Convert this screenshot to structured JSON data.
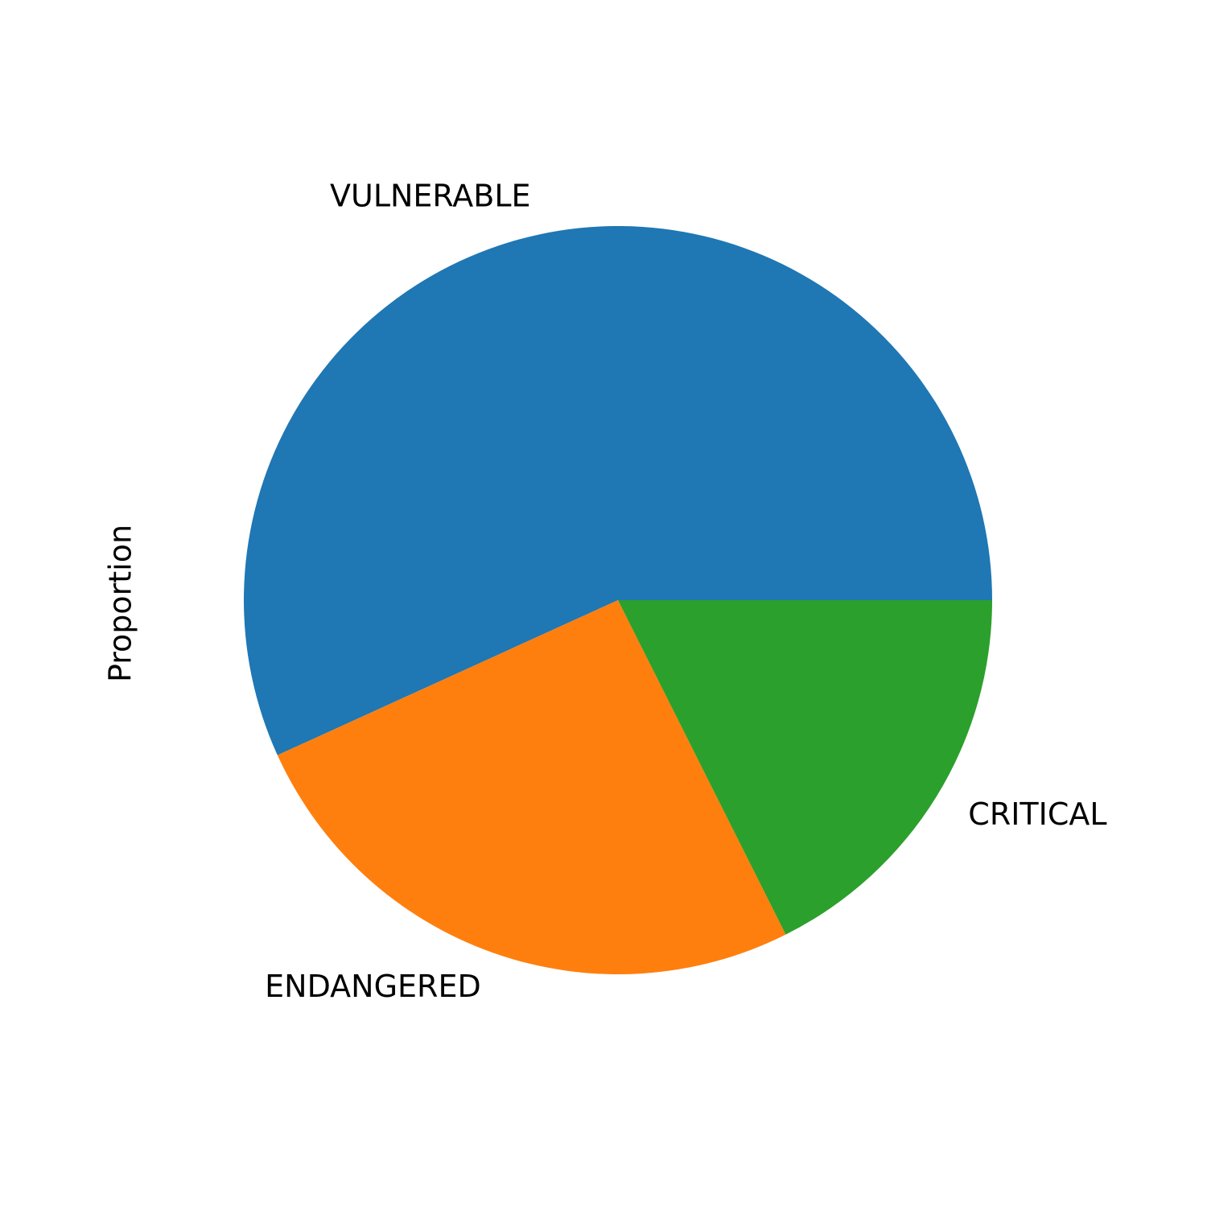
{
  "chart_data": {
    "type": "pie",
    "ylabel": "Proportion",
    "categories": [
      "VULNERABLE",
      "ENDANGERED",
      "CRITICAL"
    ],
    "values": [
      0.568,
      0.256,
      0.176
    ],
    "colors": [
      "#1f77b4",
      "#ff7f0e",
      "#2ca02c"
    ],
    "start_angle_deg": 0,
    "direction": "counterclockwise"
  }
}
